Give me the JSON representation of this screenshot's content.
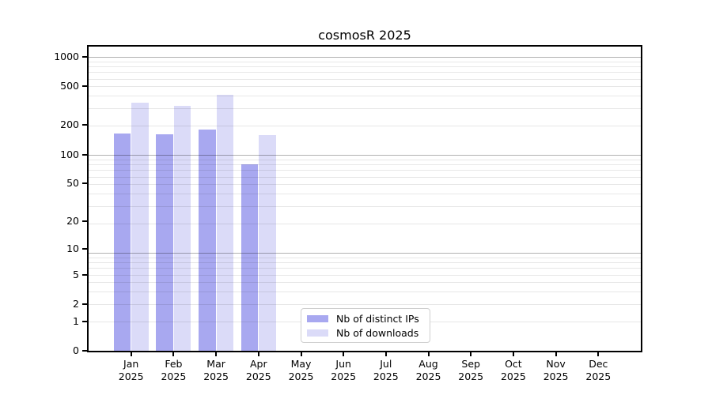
{
  "title": "cosmosR 2025",
  "legend": {
    "items": [
      {
        "label": "Nb of distinct IPs",
        "color": "#a8a8f0"
      },
      {
        "label": "Nb of downloads",
        "color": "#dbdbf8"
      }
    ],
    "position": "lower center"
  },
  "chart_data": {
    "type": "bar",
    "title": "cosmosR 2025",
    "months": [
      "Jan",
      "Feb",
      "Mar",
      "Apr",
      "May",
      "Jun",
      "Jul",
      "Aug",
      "Sep",
      "Oct",
      "Nov",
      "Dec"
    ],
    "year": "2025",
    "categories": [
      "Jan 2025",
      "Feb 2025",
      "Mar 2025",
      "Apr 2025",
      "May 2025",
      "Jun 2025",
      "Jul 2025",
      "Aug 2025",
      "Sep 2025",
      "Oct 2025",
      "Nov 2025",
      "Dec 2025"
    ],
    "series": [
      {
        "name": "Nb of distinct IPs",
        "color": "#a8a8f0",
        "values": [
          165,
          160,
          180,
          79,
          0,
          0,
          0,
          0,
          0,
          0,
          0,
          0
        ]
      },
      {
        "name": "Nb of downloads",
        "color": "#dbdbf8",
        "values": [
          337,
          318,
          410,
          158,
          0,
          0,
          0,
          0,
          0,
          0,
          0,
          0
        ]
      }
    ],
    "xlabel": "",
    "ylabel": "",
    "y_scale": "log10(1+y)",
    "y_ticks": [
      0,
      1,
      2,
      5,
      10,
      20,
      50,
      100,
      200,
      500,
      1000
    ],
    "ylim": [
      0,
      1272
    ],
    "grid": "horizontal log major+minor",
    "legend_position": "lower center"
  },
  "colors": {
    "background": "#ffffff",
    "axis": "#000000",
    "major_grid": "#b0b0b0",
    "minor_grid": "#e7e7e7",
    "text": "#000000"
  }
}
